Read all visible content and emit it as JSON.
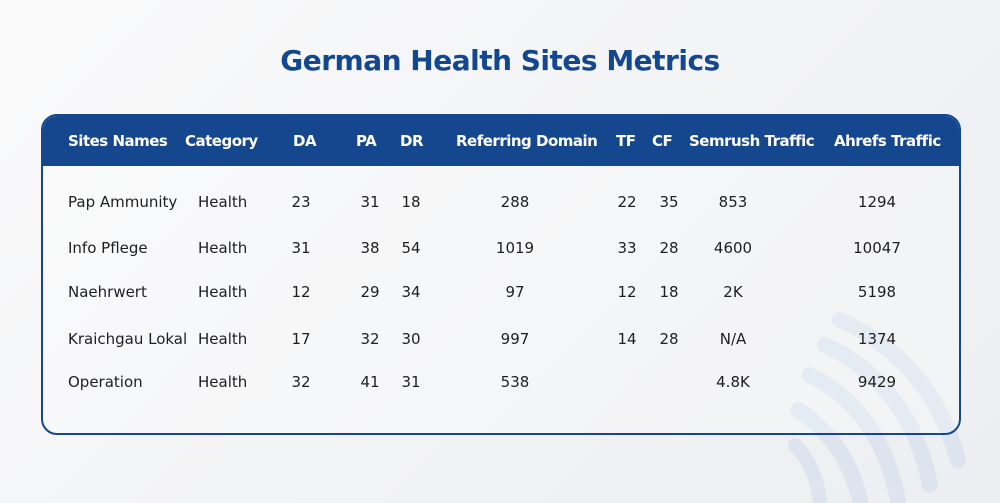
{
  "title": "German Health Sites Metrics",
  "colors": {
    "header_bg": "#15478f",
    "title": "#13478f",
    "border": "#15478f",
    "text": "#1f1f1f"
  },
  "chart_data": {
    "type": "table",
    "title": "German Health Sites Metrics",
    "columns": [
      "Sites Names",
      "Category",
      "DA",
      "PA",
      "DR",
      "Referring Domain",
      "TF",
      "CF",
      "Semrush Traffic",
      "Ahrefs Traffic"
    ],
    "rows": [
      [
        "Pap Ammunity",
        "Health",
        "23",
        "31",
        "18",
        "288",
        "22",
        "35",
        "853",
        "1294"
      ],
      [
        "Info Pflege",
        "Health",
        "31",
        "38",
        "54",
        "1019",
        "33",
        "28",
        "4600",
        "10047"
      ],
      [
        "Naehrwert",
        "Health",
        "12",
        "29",
        "34",
        "97",
        "12",
        "18",
        "2K",
        "5198"
      ],
      [
        "Kraichgau Lokal",
        "Health",
        "17",
        "32",
        "30",
        "997",
        "14",
        "28",
        "N/A",
        "1374"
      ],
      [
        "Operation",
        "Health",
        "32",
        "41",
        "31",
        "538",
        "",
        "",
        "4.8K",
        "9429"
      ]
    ]
  }
}
